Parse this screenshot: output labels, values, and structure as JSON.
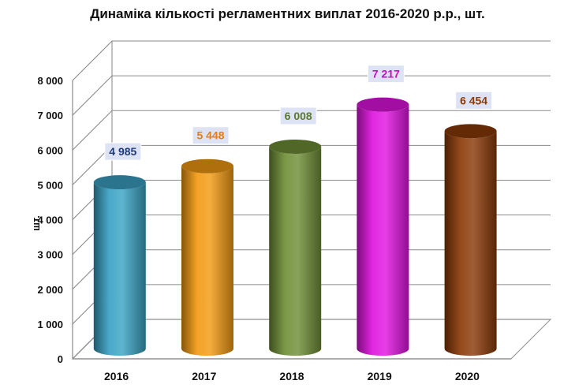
{
  "chart_data": {
    "type": "bar",
    "title": "Динаміка кількості регламентних виплат 2016-2020 р.р., шт.",
    "xlabel": "",
    "ylabel": "шт.",
    "categories": [
      "2016",
      "2017",
      "2018",
      "2019",
      "2020"
    ],
    "values": [
      4985,
      5448,
      6008,
      7217,
      6454
    ],
    "value_labels": [
      "4 985",
      "5 448",
      "6 008",
      "7 217",
      "6 454"
    ],
    "ylim": [
      0,
      8000
    ],
    "yticks": [
      0,
      1000,
      2000,
      3000,
      4000,
      5000,
      6000,
      7000,
      8000
    ],
    "ytick_labels": [
      "0",
      "1 000",
      "2 000",
      "3 000",
      "4 000",
      "5 000",
      "6 000",
      "7 000",
      "8 000"
    ],
    "grid": true,
    "legend": "none",
    "style": "3d-cylinder",
    "colors": [
      "#3aa3c4",
      "#f39a12",
      "#6f8f36",
      "#e014e0",
      "#8b3a07"
    ],
    "label_text_colors": [
      "#1f3b7a",
      "#e87d0c",
      "#5b7a2a",
      "#c40fc4",
      "#8b3a07"
    ],
    "label_bg": "#dde3f5"
  }
}
